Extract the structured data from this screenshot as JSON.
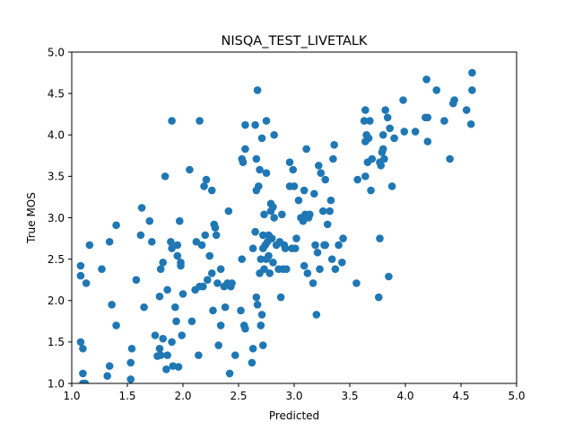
{
  "chart_data": {
    "type": "scatter",
    "title": "NISQA_TEST_LIVETALK",
    "xlabel": "Predicted",
    "ylabel": "True MOS",
    "xlim": [
      1.0,
      5.0
    ],
    "ylim": [
      1.0,
      5.0
    ],
    "xticks": [
      "1.0",
      "1.5",
      "2.0",
      "2.5",
      "3.0",
      "3.5",
      "4.0",
      "4.5",
      "5.0"
    ],
    "yticks": [
      "1.0",
      "1.5",
      "2.0",
      "2.5",
      "3.0",
      "3.5",
      "4.0",
      "4.5",
      "5.0"
    ],
    "grid": false,
    "legend": "none",
    "colors": {
      "points": "#1f77b4",
      "axes": "#000000",
      "background": "#ffffff"
    },
    "points": [
      [
        1.08,
        1.5
      ],
      [
        1.1,
        1.42
      ],
      [
        1.1,
        1.12
      ],
      [
        1.1,
        1.0
      ],
      [
        1.12,
        1.0
      ],
      [
        1.08,
        2.42
      ],
      [
        1.08,
        2.3
      ],
      [
        1.13,
        2.21
      ],
      [
        1.16,
        2.67
      ],
      [
        1.27,
        2.38
      ],
      [
        1.32,
        1.09
      ],
      [
        1.34,
        1.21
      ],
      [
        1.36,
        1.95
      ],
      [
        1.34,
        2.71
      ],
      [
        1.4,
        2.91
      ],
      [
        1.4,
        1.7
      ],
      [
        1.53,
        1.05
      ],
      [
        1.53,
        1.25
      ],
      [
        1.54,
        1.42
      ],
      [
        1.58,
        2.25
      ],
      [
        1.62,
        2.79
      ],
      [
        1.63,
        3.12
      ],
      [
        1.65,
        1.92
      ],
      [
        1.7,
        2.96
      ],
      [
        1.72,
        2.71
      ],
      [
        1.75,
        1.58
      ],
      [
        1.77,
        1.33
      ],
      [
        1.8,
        1.34
      ],
      [
        1.79,
        1.42
      ],
      [
        1.79,
        2.05
      ],
      [
        1.8,
        2.38
      ],
      [
        1.82,
        1.54
      ],
      [
        1.82,
        2.46
      ],
      [
        1.84,
        3.5
      ],
      [
        1.85,
        1.17
      ],
      [
        1.86,
        1.34
      ],
      [
        1.86,
        2.13
      ],
      [
        1.89,
        2.71
      ],
      [
        1.9,
        1.5
      ],
      [
        1.9,
        2.63
      ],
      [
        1.9,
        4.17
      ],
      [
        1.91,
        1.21
      ],
      [
        1.93,
        1.92
      ],
      [
        1.94,
        1.75
      ],
      [
        1.95,
        2.54
      ],
      [
        1.95,
        2.67
      ],
      [
        1.96,
        1.2
      ],
      [
        1.97,
        2.96
      ],
      [
        1.98,
        2.46
      ],
      [
        1.98,
        2.42
      ],
      [
        1.99,
        1.58
      ],
      [
        2.0,
        2.08
      ],
      [
        2.06,
        3.58
      ],
      [
        2.08,
        1.75
      ],
      [
        2.11,
        2.13
      ],
      [
        2.12,
        2.71
      ],
      [
        2.14,
        1.34
      ],
      [
        2.15,
        2.17
      ],
      [
        2.15,
        4.17
      ],
      [
        2.17,
        2.67
      ],
      [
        2.18,
        2.17
      ],
      [
        2.19,
        3.38
      ],
      [
        2.2,
        2.79
      ],
      [
        2.21,
        3.46
      ],
      [
        2.22,
        2.25
      ],
      [
        2.24,
        2.54
      ],
      [
        2.26,
        2.33
      ],
      [
        2.26,
        3.33
      ],
      [
        2.27,
        1.88
      ],
      [
        2.28,
        2.92
      ],
      [
        2.29,
        2.88
      ],
      [
        2.3,
        2.79
      ],
      [
        2.31,
        2.21
      ],
      [
        2.32,
        1.46
      ],
      [
        2.34,
        1.7
      ],
      [
        2.34,
        2.38
      ],
      [
        2.37,
        2.17
      ],
      [
        2.38,
        1.92
      ],
      [
        2.4,
        2.21
      ],
      [
        2.41,
        3.08
      ],
      [
        2.42,
        1.12
      ],
      [
        2.43,
        2.17
      ],
      [
        2.44,
        2.21
      ],
      [
        2.47,
        1.34
      ],
      [
        2.52,
        1.88
      ],
      [
        2.53,
        2.5
      ],
      [
        2.53,
        3.71
      ],
      [
        2.54,
        3.67
      ],
      [
        2.55,
        1.7
      ],
      [
        2.56,
        1.66
      ],
      [
        2.56,
        4.12
      ],
      [
        2.56,
        3.83
      ],
      [
        2.62,
        1.25
      ],
      [
        2.63,
        2.63
      ],
      [
        2.63,
        1.42
      ],
      [
        2.65,
        4.12
      ],
      [
        2.65,
        2.83
      ],
      [
        2.66,
        3.33
      ],
      [
        2.66,
        2.04
      ],
      [
        2.66,
        3.71
      ],
      [
        2.67,
        1.95
      ],
      [
        2.67,
        4.54
      ],
      [
        2.68,
        3.38
      ],
      [
        2.69,
        3.58
      ],
      [
        2.69,
        2.33
      ],
      [
        2.7,
        1.7
      ],
      [
        2.7,
        2.5
      ],
      [
        2.71,
        1.83
      ],
      [
        2.71,
        3.96
      ],
      [
        2.72,
        1.46
      ],
      [
        2.72,
        2.79
      ],
      [
        2.72,
        2.63
      ],
      [
        2.73,
        2.38
      ],
      [
        2.73,
        3.04
      ],
      [
        2.74,
        2.67
      ],
      [
        2.75,
        2.5
      ],
      [
        2.75,
        4.17
      ],
      [
        2.75,
        3.54
      ],
      [
        2.76,
        2.71
      ],
      [
        2.77,
        2.79
      ],
      [
        2.77,
        2.54
      ],
      [
        2.78,
        2.33
      ],
      [
        2.79,
        3.08
      ],
      [
        2.79,
        3.17
      ],
      [
        2.8,
        2.75
      ],
      [
        2.81,
        3.13
      ],
      [
        2.81,
        2.46
      ],
      [
        2.82,
        3.0
      ],
      [
        2.82,
        4.0
      ],
      [
        2.84,
        2.67
      ],
      [
        2.86,
        2.38
      ],
      [
        2.87,
        2.71
      ],
      [
        2.88,
        2.04
      ],
      [
        2.89,
        3.04
      ],
      [
        2.9,
        2.38
      ],
      [
        2.91,
        2.67
      ],
      [
        2.92,
        2.63
      ],
      [
        2.93,
        2.38
      ],
      [
        2.96,
        3.67
      ],
      [
        2.96,
        3.38
      ],
      [
        2.98,
        2.63
      ],
      [
        2.99,
        3.58
      ],
      [
        3.0,
        3.38
      ],
      [
        3.01,
        2.63
      ],
      [
        3.02,
        2.75
      ],
      [
        3.04,
        3.21
      ],
      [
        3.06,
        3.0
      ],
      [
        3.08,
        2.96
      ],
      [
        3.09,
        2.42
      ],
      [
        3.09,
        3.33
      ],
      [
        3.1,
        3.04
      ],
      [
        3.11,
        3.83
      ],
      [
        3.12,
        2.33
      ],
      [
        3.13,
        3.0
      ],
      [
        3.14,
        3.04
      ],
      [
        3.17,
        2.21
      ],
      [
        3.18,
        3.29
      ],
      [
        3.19,
        2.67
      ],
      [
        3.2,
        1.83
      ],
      [
        3.21,
        2.58
      ],
      [
        3.22,
        3.63
      ],
      [
        3.23,
        2.38
      ],
      [
        3.24,
        3.54
      ],
      [
        3.26,
        3.08
      ],
      [
        3.27,
        2.67
      ],
      [
        3.28,
        3.46
      ],
      [
        3.28,
        2.67
      ],
      [
        3.3,
        2.92
      ],
      [
        3.32,
        3.08
      ],
      [
        3.33,
        3.21
      ],
      [
        3.34,
        2.5
      ],
      [
        3.35,
        3.71
      ],
      [
        3.36,
        3.88
      ],
      [
        3.37,
        2.38
      ],
      [
        3.4,
        2.67
      ],
      [
        3.43,
        2.46
      ],
      [
        3.44,
        2.75
      ],
      [
        3.56,
        2.21
      ],
      [
        3.57,
        3.46
      ],
      [
        3.63,
        4.17
      ],
      [
        3.64,
        4.3
      ],
      [
        3.64,
        3.92
      ],
      [
        3.64,
        3.5
      ],
      [
        3.65,
        4.0
      ],
      [
        3.66,
        3.67
      ],
      [
        3.67,
        3.96
      ],
      [
        3.68,
        4.17
      ],
      [
        3.69,
        3.33
      ],
      [
        3.7,
        3.71
      ],
      [
        3.76,
        2.04
      ],
      [
        3.77,
        2.75
      ],
      [
        3.77,
        3.67
      ],
      [
        3.78,
        3.63
      ],
      [
        3.79,
        3.79
      ],
      [
        3.8,
        3.83
      ],
      [
        3.8,
        4.0
      ],
      [
        3.81,
        3.71
      ],
      [
        3.82,
        4.3
      ],
      [
        3.84,
        4.21
      ],
      [
        3.85,
        2.29
      ],
      [
        3.86,
        4.08
      ],
      [
        3.88,
        3.38
      ],
      [
        3.9,
        3.96
      ],
      [
        3.98,
        4.42
      ],
      [
        3.99,
        4.04
      ],
      [
        4.09,
        4.04
      ],
      [
        4.18,
        4.21
      ],
      [
        4.19,
        4.67
      ],
      [
        4.2,
        3.92
      ],
      [
        4.2,
        4.21
      ],
      [
        4.28,
        4.54
      ],
      [
        4.35,
        4.17
      ],
      [
        4.4,
        3.71
      ],
      [
        4.43,
        4.38
      ],
      [
        4.44,
        4.42
      ],
      [
        4.55,
        4.3
      ],
      [
        4.59,
        4.13
      ],
      [
        4.6,
        4.54
      ],
      [
        4.6,
        4.75
      ]
    ]
  }
}
